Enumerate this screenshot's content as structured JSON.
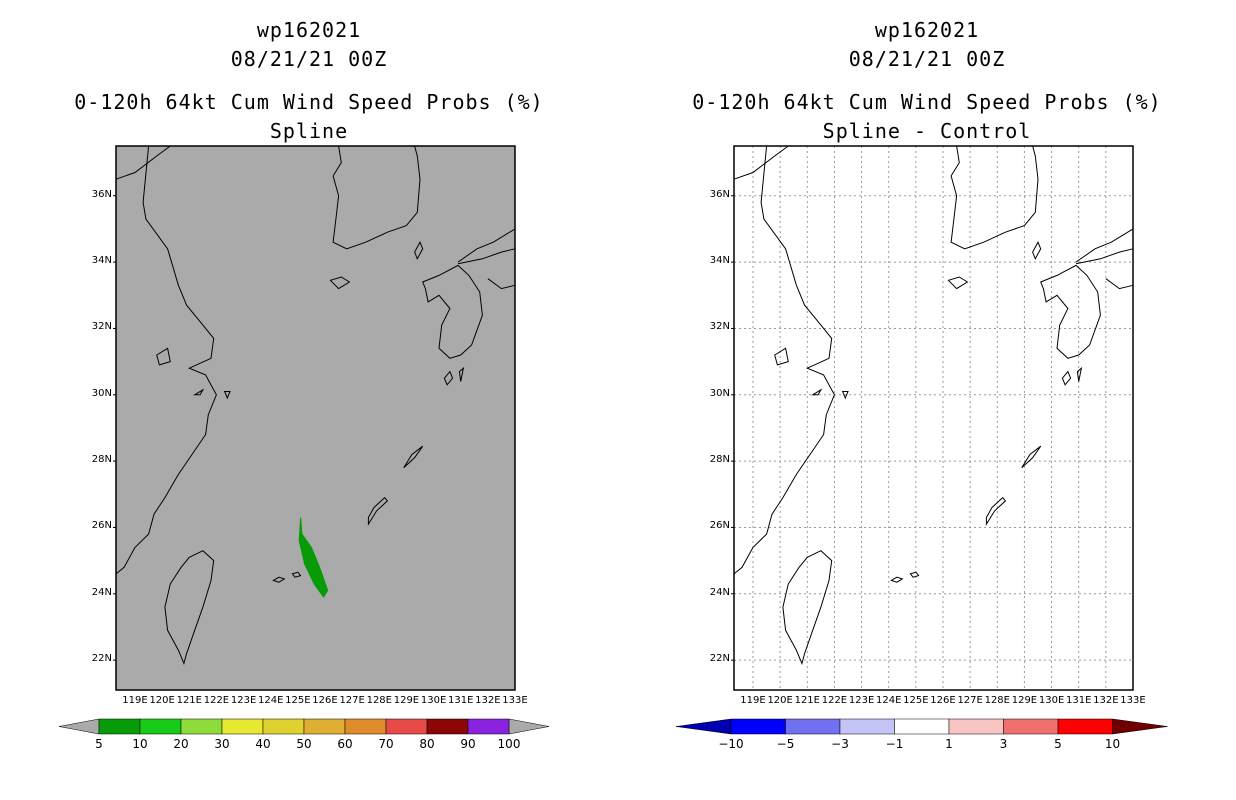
{
  "left": {
    "storm_id": "wp162021",
    "date": "08/21/21 00Z",
    "product": "0-120h 64kt Cum Wind Speed Probs (%)",
    "subtitle": "Spline",
    "background_color": "#aaaaaa",
    "colorbar": {
      "colors": [
        "#079c07",
        "#16cc16",
        "#8edc3a",
        "#e8e830",
        "#dfd230",
        "#e0ae32",
        "#e08c2c",
        "#e84a48",
        "#8c0606",
        "#8a22e0"
      ],
      "labels": [
        "5",
        "10",
        "20",
        "30",
        "40",
        "50",
        "60",
        "70",
        "80",
        "90",
        "100"
      ]
    }
  },
  "right": {
    "storm_id": "wp162021",
    "date": "08/21/21 00Z",
    "product": "0-120h 64kt Cum Wind Speed Probs (%)",
    "subtitle": "Spline - Control",
    "background_color": "#ffffff",
    "colorbar": {
      "colors": [
        "#0000b0",
        "#0000ff",
        "#7070f0",
        "#c4c4f8",
        "#ffffff",
        "#f8c4c4",
        "#f07070",
        "#ff0000",
        "#700000"
      ],
      "labels": [
        "-10",
        "-5",
        "-3",
        "-1",
        "1",
        "3",
        "5",
        "10"
      ]
    }
  },
  "axes": {
    "lat_labels": [
      "36N",
      "34N",
      "32N",
      "30N",
      "28N",
      "26N",
      "24N",
      "22N"
    ],
    "lon_labels": [
      "119E",
      "120E",
      "121E",
      "122E",
      "123E",
      "124E",
      "125E",
      "126E",
      "127E",
      "128E",
      "129E",
      "130E",
      "131E",
      "132E",
      "133E"
    ]
  }
}
